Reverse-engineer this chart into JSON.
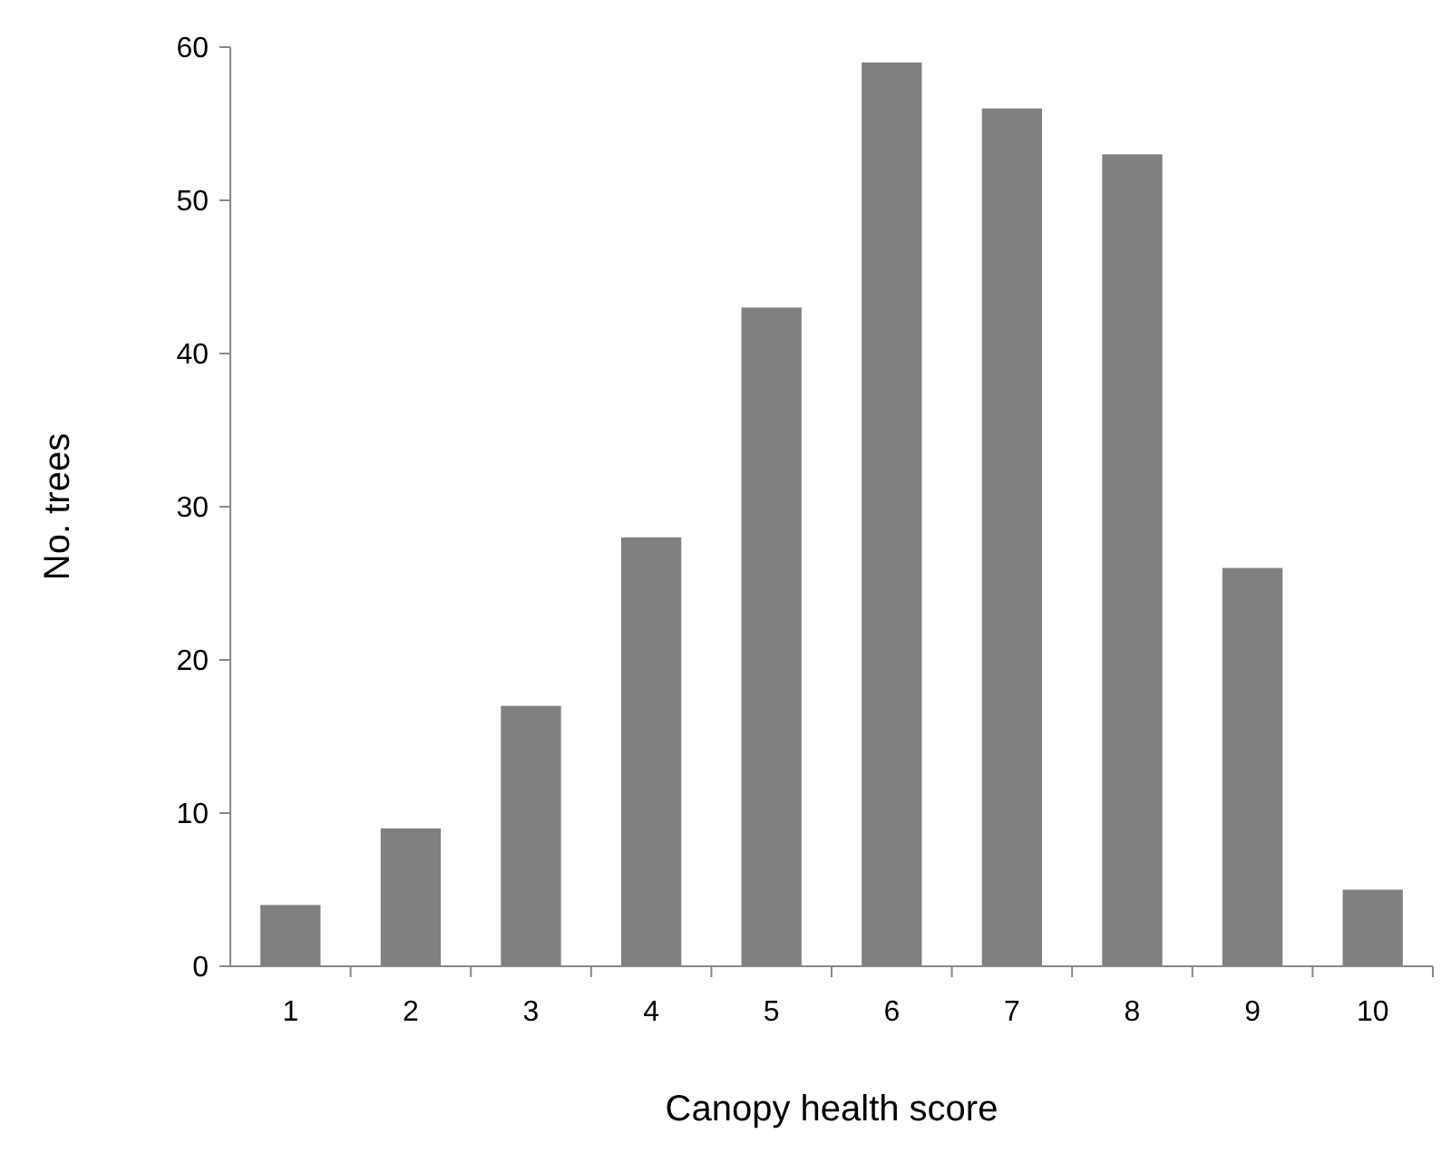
{
  "chart_data": {
    "type": "bar",
    "xlabel": "Canopy health score",
    "ylabel": "No. trees",
    "categories": [
      "1",
      "2",
      "3",
      "4",
      "5",
      "6",
      "7",
      "8",
      "9",
      "10"
    ],
    "values": [
      4,
      9,
      17,
      28,
      43,
      59,
      56,
      53,
      26,
      5
    ],
    "color": "#808080",
    "ylim": [
      0,
      60
    ],
    "yticks": [
      0,
      10,
      20,
      30,
      40,
      50,
      60
    ],
    "grid": false
  }
}
